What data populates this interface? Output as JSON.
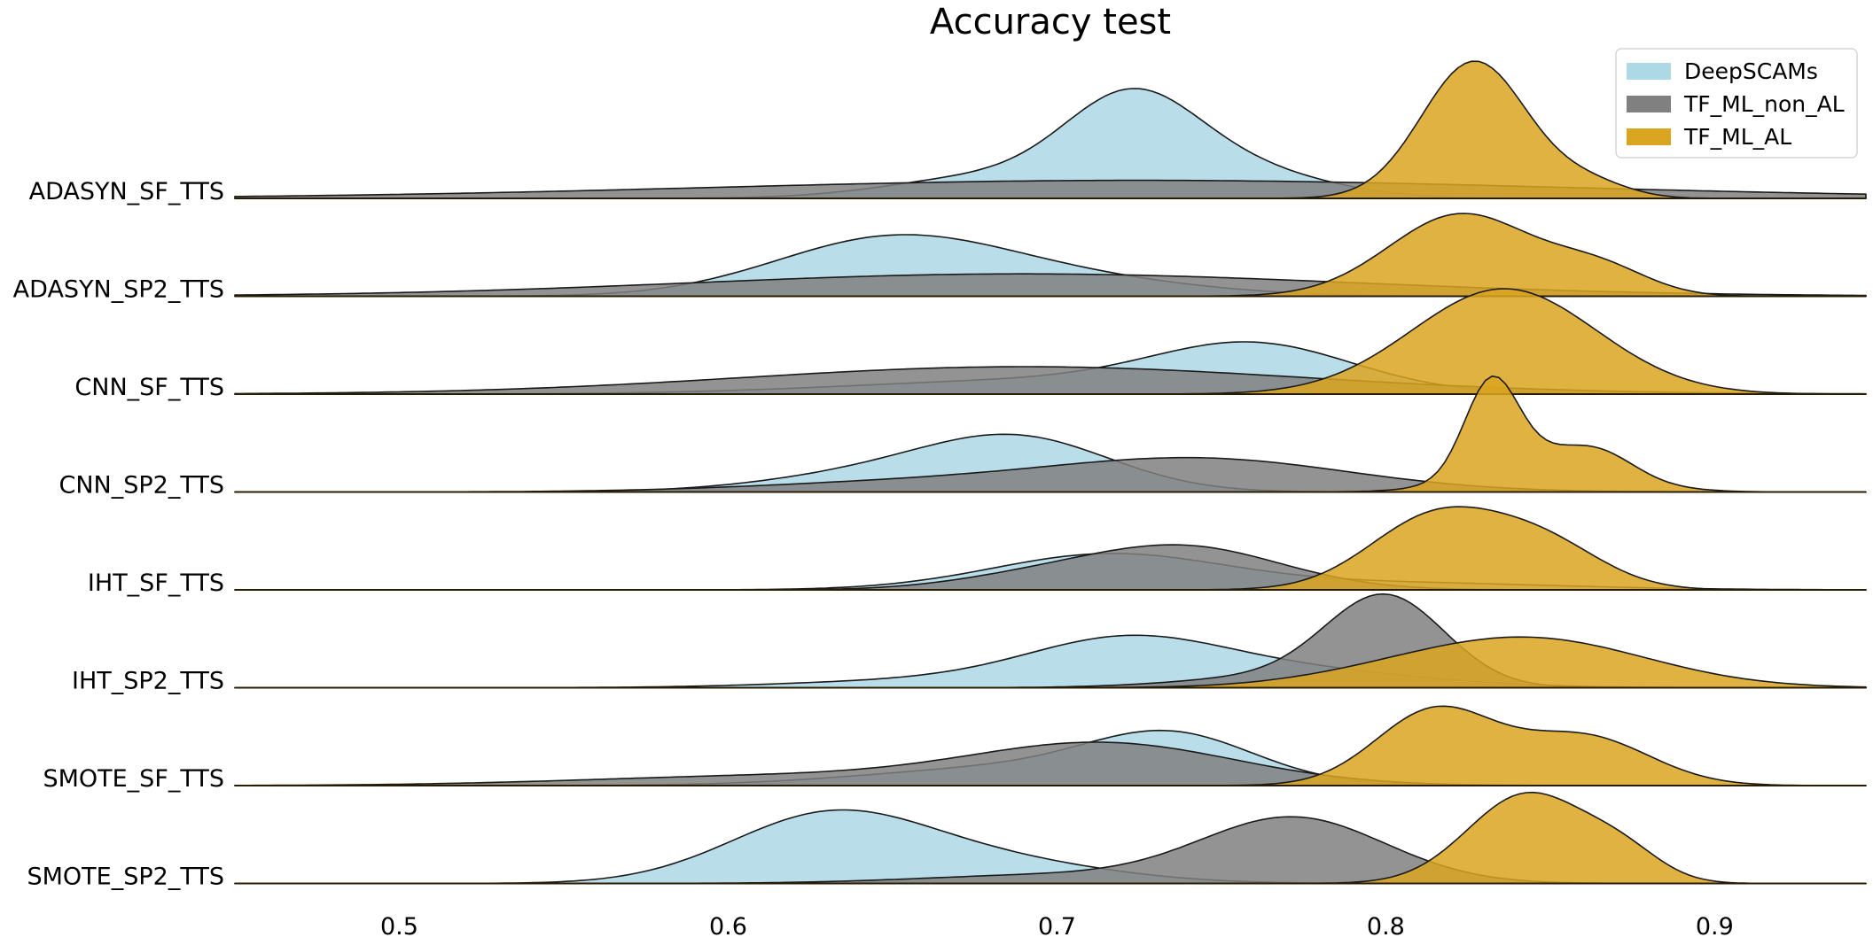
{
  "chart_data": {
    "type": "area",
    "subtype": "ridgeline-kde",
    "title": "Accuracy test",
    "xlabel": "",
    "ylabel": "",
    "xlim": [
      0.45,
      0.946
    ],
    "xticks": [
      0.5,
      0.6,
      0.7,
      0.8,
      0.9
    ],
    "xtick_labels": [
      "0.5",
      "0.6",
      "0.7",
      "0.8",
      "0.9"
    ],
    "grid": false,
    "legend_position": "top-right",
    "categories": [
      "ADASYN_SF_TTS",
      "ADASYN_SP2_TTS",
      "CNN_SF_TTS",
      "CNN_SP2_TTS",
      "IHT_SF_TTS",
      "IHT_SP2_TTS",
      "SMOTE_SF_TTS",
      "SMOTE_SP2_TTS"
    ],
    "series": [
      {
        "name": "DeepSCAMs",
        "color": "#add8e6"
      },
      {
        "name": "TF_ML_non_AL",
        "color": "#808080"
      },
      {
        "name": "TF_ML_AL",
        "color": "#daa520"
      }
    ],
    "density_peak_units": "relative height (1.0 = tallest curve)",
    "rows": [
      {
        "category": "ADASYN_SF_TTS",
        "densities": [
          {
            "series": "DeepSCAMs",
            "components": [
              {
                "mu": 0.722,
                "sd": 0.02,
                "w": 0.57
              },
              {
                "mu": 0.75,
                "sd": 0.028,
                "w": 0.22
              },
              {
                "mu": 0.68,
                "sd": 0.03,
                "w": 0.15
              }
            ]
          },
          {
            "series": "TF_ML_non_AL",
            "components": [
              {
                "mu": 0.725,
                "sd": 0.13,
                "w": 0.125
              }
            ]
          },
          {
            "series": "TF_ML_AL",
            "components": [
              {
                "mu": 0.827,
                "sd": 0.016,
                "w": 0.95
              },
              {
                "mu": 0.862,
                "sd": 0.012,
                "w": 0.1
              }
            ]
          }
        ]
      },
      {
        "category": "ADASYN_SP2_TTS",
        "densities": [
          {
            "series": "DeepSCAMs",
            "components": [
              {
                "mu": 0.648,
                "sd": 0.035,
                "w": 0.37
              },
              {
                "mu": 0.7,
                "sd": 0.04,
                "w": 0.12
              }
            ]
          },
          {
            "series": "TF_ML_non_AL",
            "components": [
              {
                "mu": 0.69,
                "sd": 0.1,
                "w": 0.155
              }
            ]
          },
          {
            "series": "TF_ML_AL",
            "components": [
              {
                "mu": 0.823,
                "sd": 0.022,
                "w": 0.57
              },
              {
                "mu": 0.865,
                "sd": 0.015,
                "w": 0.18
              }
            ]
          }
        ]
      },
      {
        "category": "CNN_SF_TTS",
        "densities": [
          {
            "series": "DeepSCAMs",
            "components": [
              {
                "mu": 0.76,
                "sd": 0.03,
                "w": 0.3
              },
              {
                "mu": 0.7,
                "sd": 0.06,
                "w": 0.1
              }
            ]
          },
          {
            "series": "TF_ML_non_AL",
            "components": [
              {
                "mu": 0.69,
                "sd": 0.085,
                "w": 0.19
              }
            ]
          },
          {
            "series": "TF_ML_AL",
            "components": [
              {
                "mu": 0.836,
                "sd": 0.028,
                "w": 0.73
              }
            ]
          }
        ]
      },
      {
        "category": "CNN_SP2_TTS",
        "densities": [
          {
            "series": "DeepSCAMs",
            "components": [
              {
                "mu": 0.69,
                "sd": 0.028,
                "w": 0.32
              },
              {
                "mu": 0.65,
                "sd": 0.035,
                "w": 0.14
              }
            ]
          },
          {
            "series": "TF_ML_non_AL",
            "components": [
              {
                "mu": 0.745,
                "sd": 0.045,
                "w": 0.22
              },
              {
                "mu": 0.66,
                "sd": 0.05,
                "w": 0.07
              }
            ]
          },
          {
            "series": "TF_ML_AL",
            "components": [
              {
                "mu": 0.832,
                "sd": 0.008,
                "w": 0.62
              },
              {
                "mu": 0.85,
                "sd": 0.02,
                "w": 0.27
              },
              {
                "mu": 0.866,
                "sd": 0.01,
                "w": 0.1
              }
            ]
          }
        ]
      },
      {
        "category": "IHT_SF_TTS",
        "densities": [
          {
            "series": "DeepSCAMs",
            "components": [
              {
                "mu": 0.715,
                "sd": 0.035,
                "w": 0.24
              },
              {
                "mu": 0.8,
                "sd": 0.05,
                "w": 0.05
              }
            ]
          },
          {
            "series": "TF_ML_non_AL",
            "components": [
              {
                "mu": 0.738,
                "sd": 0.03,
                "w": 0.3
              },
              {
                "mu": 0.69,
                "sd": 0.025,
                "w": 0.07
              }
            ]
          },
          {
            "series": "TF_ML_AL",
            "components": [
              {
                "mu": 0.815,
                "sd": 0.02,
                "w": 0.5
              },
              {
                "mu": 0.848,
                "sd": 0.018,
                "w": 0.3
              }
            ]
          }
        ]
      },
      {
        "category": "IHT_SP2_TTS",
        "densities": [
          {
            "series": "DeepSCAMs",
            "components": [
              {
                "mu": 0.72,
                "sd": 0.03,
                "w": 0.29
              },
              {
                "mu": 0.77,
                "sd": 0.04,
                "w": 0.12
              },
              {
                "mu": 0.66,
                "sd": 0.04,
                "w": 0.05
              }
            ]
          },
          {
            "series": "TF_ML_non_AL",
            "components": [
              {
                "mu": 0.8,
                "sd": 0.018,
                "w": 0.6
              },
              {
                "mu": 0.77,
                "sd": 0.03,
                "w": 0.08
              }
            ]
          },
          {
            "series": "TF_ML_AL",
            "components": [
              {
                "mu": 0.845,
                "sd": 0.035,
                "w": 0.33
              },
              {
                "mu": 0.8,
                "sd": 0.03,
                "w": 0.06
              }
            ]
          }
        ]
      },
      {
        "category": "SMOTE_SF_TTS",
        "densities": [
          {
            "series": "DeepSCAMs",
            "components": [
              {
                "mu": 0.735,
                "sd": 0.025,
                "w": 0.3
              },
              {
                "mu": 0.69,
                "sd": 0.045,
                "w": 0.13
              }
            ]
          },
          {
            "series": "TF_ML_non_AL",
            "components": [
              {
                "mu": 0.715,
                "sd": 0.04,
                "w": 0.28
              },
              {
                "mu": 0.62,
                "sd": 0.06,
                "w": 0.07
              }
            ]
          },
          {
            "series": "TF_ML_AL",
            "components": [
              {
                "mu": 0.815,
                "sd": 0.018,
                "w": 0.52
              },
              {
                "mu": 0.86,
                "sd": 0.02,
                "w": 0.34
              }
            ]
          }
        ]
      },
      {
        "category": "SMOTE_SP2_TTS",
        "densities": [
          {
            "series": "DeepSCAMs",
            "components": [
              {
                "mu": 0.63,
                "sd": 0.03,
                "w": 0.45
              },
              {
                "mu": 0.68,
                "sd": 0.035,
                "w": 0.15
              }
            ]
          },
          {
            "series": "TF_ML_non_AL",
            "components": [
              {
                "mu": 0.772,
                "sd": 0.028,
                "w": 0.45
              },
              {
                "mu": 0.7,
                "sd": 0.04,
                "w": 0.06
              }
            ]
          },
          {
            "series": "TF_ML_AL",
            "components": [
              {
                "mu": 0.843,
                "sd": 0.018,
                "w": 0.62
              },
              {
                "mu": 0.872,
                "sd": 0.012,
                "w": 0.18
              }
            ]
          }
        ]
      }
    ]
  }
}
